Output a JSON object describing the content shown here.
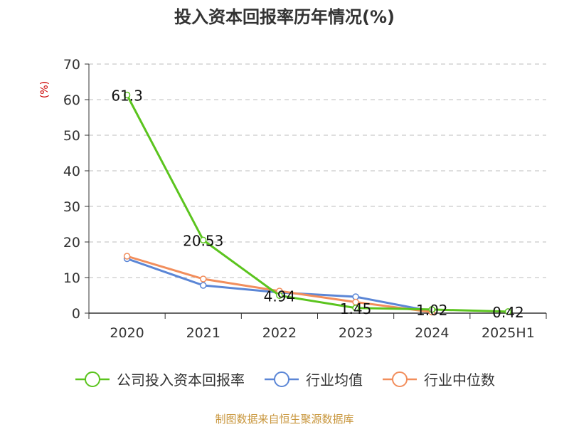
{
  "title": "投入资本回报率历年情况(%)",
  "source_note": "制图数据来自恒生聚源数据库",
  "source_color": "#c8963c",
  "chart_data": {
    "type": "line",
    "title": "投入资本回报率历年情况(%)",
    "ylabel": "(%)",
    "xlabel": "",
    "categories": [
      "2020",
      "2021",
      "2022",
      "2023",
      "2024",
      "2025H1"
    ],
    "ylim": [
      0,
      70
    ],
    "yticks": [
      0,
      10,
      20,
      30,
      40,
      50,
      60,
      70
    ],
    "grid": true,
    "legend_position": "bottom",
    "series": [
      {
        "name": "公司投入资本回报率",
        "color": "#5bc41e",
        "values": [
          61.3,
          20.53,
          4.94,
          1.45,
          1.02,
          0.42
        ],
        "labels": [
          "61.3",
          "20.53",
          "4.94",
          "1.45",
          "1.02",
          "0.42"
        ]
      },
      {
        "name": "行业均值",
        "color": "#5b86d6",
        "values": [
          15.3,
          7.8,
          5.8,
          4.6,
          0.5,
          null
        ]
      },
      {
        "name": "行业中位数",
        "color": "#f28e5c",
        "values": [
          16.0,
          9.6,
          6.2,
          3.1,
          0.3,
          null
        ]
      }
    ]
  }
}
